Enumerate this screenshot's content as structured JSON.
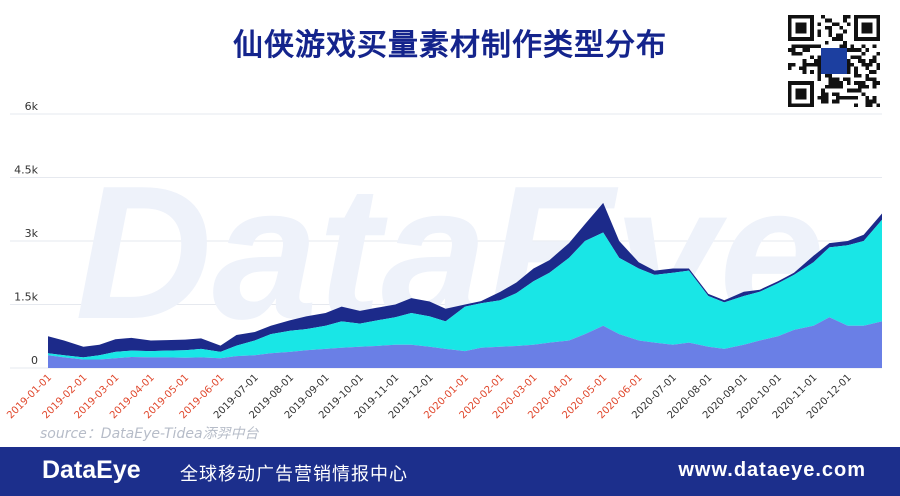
{
  "title": "仙侠游戏买量素材制作类型分布",
  "watermark": "DataEye",
  "source": "source：DataEye-Tidea添羿中台",
  "footer": {
    "logo": "DataEye",
    "slogan": "全球移动广告营销情报中心",
    "url": "www.dataeye.com"
  },
  "colors": {
    "title": "#14248c",
    "navy_series": "#1c2a8a",
    "cyan_series": "#19e6e6",
    "blue_series": "#6a7fe6",
    "red_tick": "#e0472c",
    "black_tick": "#333333",
    "footer_bg": "#1c2f8c"
  },
  "chart_data": {
    "type": "area",
    "stacked": true,
    "ylim": [
      0,
      6000
    ],
    "y_ticks": [
      {
        "value": 0,
        "label": "0"
      },
      {
        "value": 1500,
        "label": "1.5k"
      },
      {
        "value": 3000,
        "label": "3k"
      },
      {
        "value": 4500,
        "label": "4.5k"
      },
      {
        "value": 6000,
        "label": "6k"
      }
    ],
    "grid": true,
    "x_ticks": [
      {
        "label": "2019-01-01",
        "color": "red"
      },
      {
        "label": "2019-02-01",
        "color": "red"
      },
      {
        "label": "2019-03-01",
        "color": "red"
      },
      {
        "label": "2019-04-01",
        "color": "red"
      },
      {
        "label": "2019-05-01",
        "color": "red"
      },
      {
        "label": "2019-06-01",
        "color": "red"
      },
      {
        "label": "2019-07-01",
        "color": "black"
      },
      {
        "label": "2019-08-01",
        "color": "black"
      },
      {
        "label": "2019-09-01",
        "color": "black"
      },
      {
        "label": "2019-10-01",
        "color": "black"
      },
      {
        "label": "2019-11-01",
        "color": "black"
      },
      {
        "label": "2019-12-01",
        "color": "black"
      },
      {
        "label": "2020-01-01",
        "color": "red"
      },
      {
        "label": "2020-02-01",
        "color": "red"
      },
      {
        "label": "2020-03-01",
        "color": "red"
      },
      {
        "label": "2020-04-01",
        "color": "red"
      },
      {
        "label": "2020-05-01",
        "color": "red"
      },
      {
        "label": "2020-06-01",
        "color": "red"
      },
      {
        "label": "2020-07-01",
        "color": "black"
      },
      {
        "label": "2020-08-01",
        "color": "black"
      },
      {
        "label": "2020-09-01",
        "color": "black"
      },
      {
        "label": "2020-10-01",
        "color": "black"
      },
      {
        "label": "2020-11-01",
        "color": "black"
      },
      {
        "label": "2020-12-01",
        "color": "black"
      }
    ],
    "x": [
      "2019-01-01",
      "2019-01-15",
      "2019-02-01",
      "2019-02-15",
      "2019-03-01",
      "2019-03-15",
      "2019-04-01",
      "2019-04-15",
      "2019-05-01",
      "2019-05-15",
      "2019-06-01",
      "2019-06-15",
      "2019-07-01",
      "2019-07-15",
      "2019-08-01",
      "2019-08-15",
      "2019-09-01",
      "2019-09-15",
      "2019-10-01",
      "2019-10-15",
      "2019-11-01",
      "2019-11-15",
      "2019-12-01",
      "2019-12-15",
      "2020-01-01",
      "2020-01-15",
      "2020-02-01",
      "2020-02-15",
      "2020-03-01",
      "2020-03-15",
      "2020-04-01",
      "2020-04-15",
      "2020-05-01",
      "2020-05-15",
      "2020-06-01",
      "2020-06-15",
      "2020-07-01",
      "2020-07-15",
      "2020-08-01",
      "2020-08-15",
      "2020-09-01",
      "2020-09-15",
      "2020-10-01",
      "2020-10-15",
      "2020-11-01",
      "2020-11-15",
      "2020-12-01",
      "2020-12-15",
      "2020-12-31"
    ],
    "series": [
      {
        "color": "#6a7fe6",
        "values": [
          300,
          250,
          200,
          200,
          230,
          260,
          250,
          250,
          240,
          250,
          230,
          280,
          300,
          350,
          380,
          420,
          450,
          480,
          500,
          520,
          550,
          550,
          500,
          450,
          400,
          480,
          500,
          520,
          550,
          600,
          650,
          800,
          1000,
          800,
          650,
          600,
          550,
          600,
          500,
          450,
          550,
          650,
          750,
          900,
          1000,
          1200,
          1000,
          1000,
          1100
        ]
      },
      {
        "color": "#19e6e6",
        "values": [
          50,
          50,
          50,
          100,
          150,
          150,
          150,
          160,
          180,
          200,
          150,
          250,
          350,
          450,
          500,
          500,
          550,
          620,
          550,
          600,
          650,
          750,
          720,
          650,
          1050,
          1050,
          1100,
          1250,
          1500,
          1650,
          1950,
          2200,
          2200,
          1800,
          1700,
          1600,
          1700,
          1700,
          1200,
          1100,
          1150,
          1150,
          1250,
          1300,
          1500,
          1650,
          1900,
          2000,
          2400
        ]
      },
      {
        "color": "#1c2a8a",
        "values": [
          400,
          350,
          250,
          250,
          300,
          300,
          250,
          250,
          250,
          250,
          150,
          250,
          200,
          200,
          250,
          300,
          300,
          350,
          300,
          300,
          300,
          350,
          350,
          300,
          50,
          50,
          200,
          250,
          300,
          300,
          350,
          400,
          700,
          400,
          150,
          100,
          100,
          50,
          50,
          50,
          100,
          50,
          50,
          50,
          150,
          100,
          100,
          150,
          150
        ]
      }
    ]
  }
}
